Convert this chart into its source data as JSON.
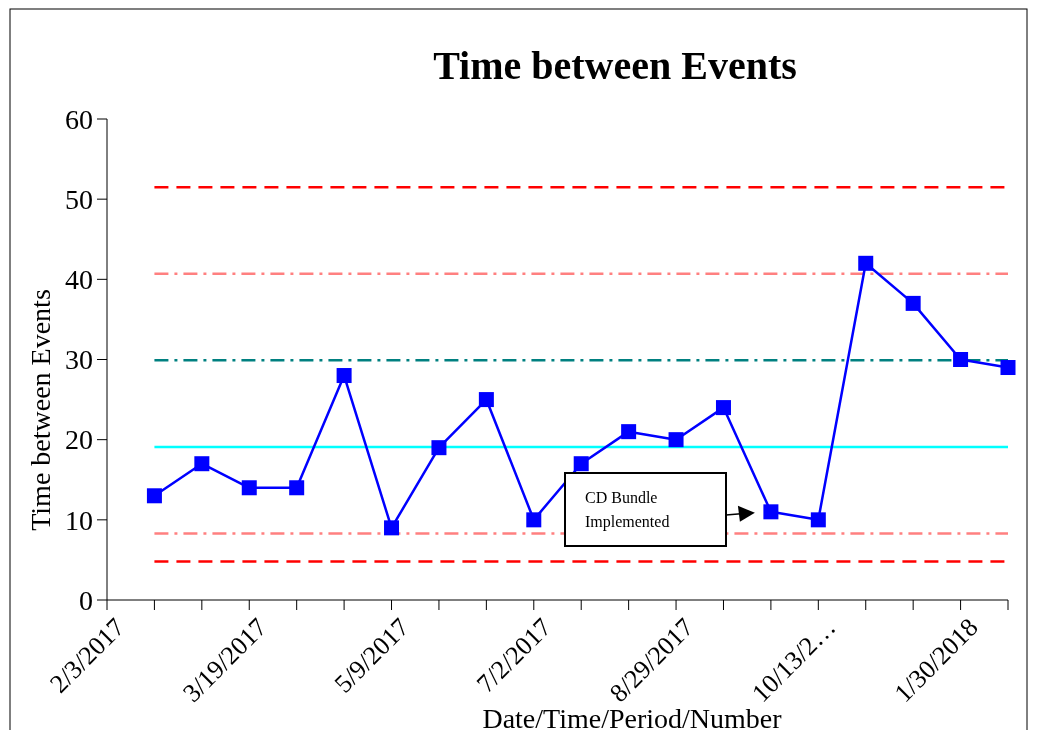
{
  "chart_data": {
    "type": "line",
    "title": "Time between Events",
    "xlabel": "Date/Time/Period/Number",
    "ylabel": "Time between Events",
    "categories": [
      "2/3/2017",
      null,
      null,
      "3/19/2017",
      null,
      null,
      "5/9/2017",
      null,
      null,
      "7/2/2017",
      null,
      null,
      "8/29/2017",
      null,
      null,
      "10/13/2…",
      null,
      null,
      "1/30/2018",
      null
    ],
    "series": [
      {
        "color": "#0000ff",
        "values": [
          null,
          13,
          17,
          14,
          14,
          28,
          9,
          19,
          25,
          10,
          17,
          21,
          20,
          24,
          11,
          10,
          42,
          37,
          30,
          29
        ]
      }
    ],
    "ylim": [
      0,
      60
    ],
    "yticks": [
      0,
      10,
      20,
      30,
      40,
      50,
      60
    ],
    "marker": "square",
    "line_style": "solid",
    "ref_lines": [
      {
        "axis": "y",
        "value": 51.5,
        "color": "#ff0000",
        "line_style": "dashed"
      },
      {
        "axis": "y",
        "value": 40.7,
        "color": "#ff8080",
        "line_style": "dashdot"
      },
      {
        "axis": "y",
        "value": 29.9,
        "color": "#008080",
        "line_style": "dashdot"
      },
      {
        "axis": "y",
        "value": 19.1,
        "color": "#00ffff",
        "line_style": "solid"
      },
      {
        "axis": "y",
        "value": 8.3,
        "color": "#ff8080",
        "line_style": "dashdot"
      },
      {
        "axis": "y",
        "value": 4.8,
        "color": "#ff0000",
        "line_style": "dashed"
      }
    ],
    "annotations": [
      "CD Bundle\nImplemented"
    ]
  }
}
